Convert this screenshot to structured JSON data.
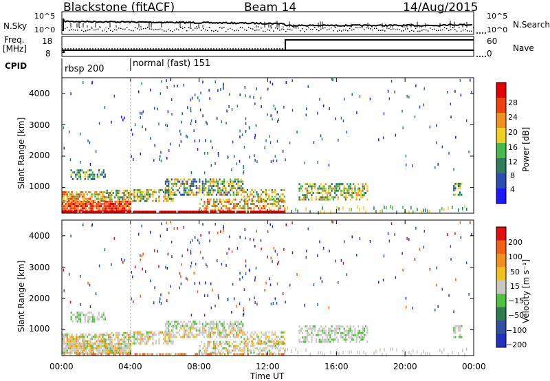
{
  "header": {
    "station": "Blackstone (fitACF)",
    "beam": "Beam 14",
    "date": "14/Aug/2015"
  },
  "status_panels": {
    "nsky_label": "N.Sky",
    "nsky_ticks": [
      "10^5",
      "10^0"
    ],
    "nsearch_label": "N.Search",
    "nsearch_ticks": [
      "10^5",
      "10^0"
    ],
    "freq_label_line1": "Freq.",
    "freq_label_line2": "[MHz]",
    "freq_ticks": [
      "18",
      "8"
    ],
    "nave_label": "Nave",
    "nave_ticks": [
      "60",
      "0"
    ],
    "cpid_label": "CPID",
    "cpid_segments": [
      {
        "name": "rbsp 200",
        "start_hour": 0
      },
      {
        "name": "normal (fast) 151",
        "start_hour": 4
      }
    ]
  },
  "chart_data": [
    {
      "type": "heatmap",
      "quantity": "Power",
      "ylabel": "Slant Range [km]",
      "yticks": [
        "1000",
        "2000",
        "3000",
        "4000"
      ],
      "ylim": [
        180,
        4500
      ],
      "xlim": [
        0,
        24
      ],
      "colorbar": {
        "label": "Power [dB]",
        "ticks": [
          "4",
          "8",
          "12",
          "16",
          "20",
          "24",
          "28"
        ],
        "colors": [
          "#1a1aff",
          "#2a4fb0",
          "#2e7d5a",
          "#48b848",
          "#f0d020",
          "#f09020",
          "#f04010",
          "#e00000"
        ]
      }
    },
    {
      "type": "heatmap",
      "quantity": "Velocity",
      "ylabel": "Slant Range [km]",
      "yticks": [
        "1000",
        "2000",
        "3000",
        "4000"
      ],
      "ylim": [
        180,
        4500
      ],
      "xlim": [
        0,
        24
      ],
      "xlabel": "Time UT",
      "xticks": [
        "00:00",
        "04:00",
        "08:00",
        "12:00",
        "16:00",
        "20:00",
        "00:00"
      ],
      "colorbar": {
        "label": "Velocity [m s⁻¹]",
        "ticks": [
          "200",
          "100",
          "50",
          "15",
          "−15",
          "−50",
          "−100",
          "−200"
        ],
        "colors": [
          "#2030c0",
          "#3050a0",
          "#307a50",
          "#50c040",
          "#c8c8c0",
          "#f0c020",
          "#f09020",
          "#f06010",
          "#e01010"
        ]
      }
    }
  ]
}
